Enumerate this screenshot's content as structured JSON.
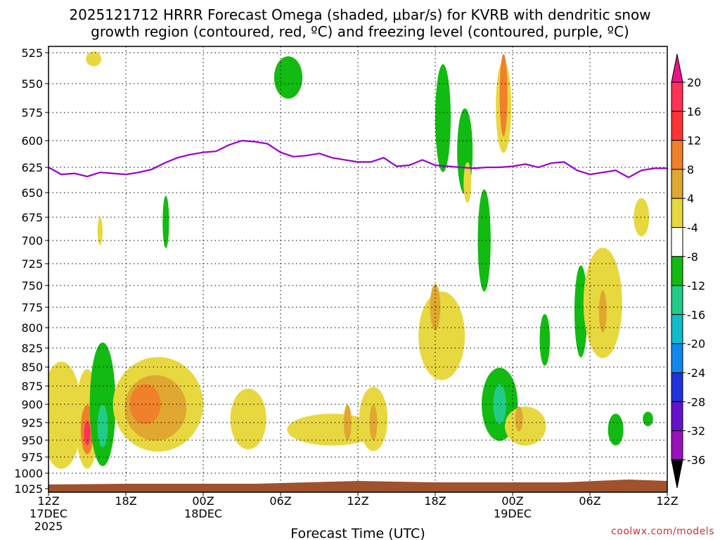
{
  "chart_data": {
    "type": "time-height contour",
    "title_line1": "2025121712 HRRR Forecast Omega (shaded, μbar/s) for KVRB with dendritic snow",
    "title_line2": "growth region (contoured, red, ºC) and freezing level (contoured, purple, ºC)",
    "xlabel": "Forecast Time (UTC)",
    "credit": "coolwx.com/models",
    "y_levels": [
      525,
      550,
      575,
      600,
      625,
      650,
      675,
      700,
      725,
      750,
      775,
      800,
      825,
      850,
      875,
      900,
      925,
      950,
      975,
      1000,
      1025
    ],
    "y_label_text": [
      "525",
      "550",
      "575",
      "600",
      "625",
      "650",
      "675",
      "700",
      "725",
      "750",
      "775",
      "800",
      "825",
      "850",
      "875",
      "900",
      "925",
      "950",
      "975",
      "1000",
      "1025"
    ],
    "x_ticks": [
      {
        "hour": 0,
        "label": "12Z",
        "sub": "17DEC",
        "sub2": "2025"
      },
      {
        "hour": 6,
        "label": "18Z",
        "sub": "",
        "sub2": ""
      },
      {
        "hour": 12,
        "label": "00Z",
        "sub": "18DEC",
        "sub2": ""
      },
      {
        "hour": 18,
        "label": "06Z",
        "sub": "",
        "sub2": ""
      },
      {
        "hour": 24,
        "label": "12Z",
        "sub": "",
        "sub2": ""
      },
      {
        "hour": 30,
        "label": "18Z",
        "sub": "",
        "sub2": ""
      },
      {
        "hour": 36,
        "label": "00Z",
        "sub": "19DEC",
        "sub2": ""
      },
      {
        "hour": 42,
        "label": "06Z",
        "sub": "",
        "sub2": ""
      },
      {
        "hour": 48,
        "label": "12Z",
        "sub": "",
        "sub2": ""
      }
    ],
    "x_range_hours": [
      0,
      48
    ],
    "colorbar": {
      "labels": [
        "20",
        "16",
        "12",
        "8",
        "4",
        "-4",
        "-8",
        "-12",
        "-16",
        "-20",
        "-24",
        "-28",
        "-32",
        "-36"
      ],
      "colors": [
        "#ff3355",
        "#ff3333",
        "#f0802a",
        "#e0a830",
        "#e8d840",
        "#ffffff",
        "#11bb11",
        "#22cc88",
        "#11bbcc",
        "#1188ee",
        "#2233dd",
        "#6611cc",
        "#9911bb",
        "#aaaaaa"
      ],
      "top_color": "#ee1188",
      "bottom_color": "#000000"
    },
    "freezing_level": {
      "hours": [
        0,
        1,
        2,
        3,
        4,
        5,
        6,
        7,
        8,
        9,
        10,
        11,
        12,
        13,
        14,
        15,
        16,
        17,
        18,
        19,
        20,
        21,
        22,
        23,
        24,
        25,
        26,
        27,
        28,
        29,
        30,
        31,
        32,
        33,
        34,
        35,
        36,
        37,
        38,
        39,
        40,
        41,
        42,
        43,
        44,
        45,
        46,
        47,
        48
      ],
      "pressure": [
        625,
        632,
        631,
        634,
        630,
        631,
        632,
        630,
        627,
        621,
        616,
        613,
        611,
        610,
        604,
        600,
        601,
        603,
        611,
        615,
        614,
        612,
        616,
        618,
        620,
        620,
        616,
        624,
        623,
        618,
        623,
        624,
        625,
        626,
        625,
        625,
        624,
        622,
        625,
        621,
        620,
        628,
        632,
        630,
        628,
        635,
        628,
        626,
        626
      ]
    },
    "omega_regions": [
      {
        "value": "8",
        "h": 0.9,
        "p": 920,
        "dh": 0.9,
        "dp": 90
      },
      {
        "value": "4",
        "h": 1.0,
        "p": 915,
        "dh": 1.6,
        "dp": 150
      },
      {
        "value": "4",
        "h": 3.0,
        "p": 920,
        "dh": 0.9,
        "dp": 140
      },
      {
        "value": "12",
        "h": 3.0,
        "p": 935,
        "dh": 0.5,
        "dp": 70
      },
      {
        "value": "20",
        "h": 3.0,
        "p": 940,
        "dh": 0.25,
        "dp": 35
      },
      {
        "value": "-8",
        "h": 4.2,
        "p": 900,
        "dh": 1.0,
        "dp": 170
      },
      {
        "value": "-12",
        "h": 4.2,
        "p": 930,
        "dh": 0.4,
        "dp": 60
      },
      {
        "value": "4",
        "h": 3.5,
        "p": 530,
        "dh": 0.6,
        "dp": 12
      },
      {
        "value": "4",
        "h": 4.0,
        "p": 690,
        "dh": 0.2,
        "dp": 30
      },
      {
        "value": "4",
        "h": 8.5,
        "p": 900,
        "dh": 3.5,
        "dp": 130
      },
      {
        "value": "8",
        "h": 8.3,
        "p": 905,
        "dh": 2.4,
        "dp": 90
      },
      {
        "value": "12",
        "h": 7.5,
        "p": 900,
        "dh": 1.2,
        "dp": 55
      },
      {
        "value": "-8",
        "h": 9.1,
        "p": 680,
        "dh": 0.25,
        "dp": 55
      },
      {
        "value": "4",
        "h": 15.5,
        "p": 920,
        "dh": 1.4,
        "dp": 85
      },
      {
        "value": "-8",
        "h": 18.6,
        "p": 545,
        "dh": 1.1,
        "dp": 35
      },
      {
        "value": "4",
        "h": 22.0,
        "p": 935,
        "dh": 3.5,
        "dp": 45
      },
      {
        "value": "8",
        "h": 23.2,
        "p": 925,
        "dh": 0.3,
        "dp": 50
      },
      {
        "value": "4",
        "h": 25.2,
        "p": 920,
        "dh": 1.1,
        "dp": 90
      },
      {
        "value": "8",
        "h": 25.2,
        "p": 925,
        "dh": 0.3,
        "dp": 50
      },
      {
        "value": "4",
        "h": 30.5,
        "p": 810,
        "dh": 1.8,
        "dp": 110
      },
      {
        "value": "8",
        "h": 30.0,
        "p": 775,
        "dh": 0.4,
        "dp": 55
      },
      {
        "value": "-8",
        "h": 30.6,
        "p": 580,
        "dh": 0.6,
        "dp": 95
      },
      {
        "value": "-8",
        "h": 32.3,
        "p": 610,
        "dh": 0.6,
        "dp": 80
      },
      {
        "value": "4",
        "h": 32.5,
        "p": 640,
        "dh": 0.3,
        "dp": 40
      },
      {
        "value": "-8",
        "h": 33.8,
        "p": 700,
        "dh": 0.5,
        "dp": 110
      },
      {
        "value": "4",
        "h": 35.3,
        "p": 570,
        "dh": 0.6,
        "dp": 80
      },
      {
        "value": "12",
        "h": 35.3,
        "p": 560,
        "dh": 0.3,
        "dp": 70
      },
      {
        "value": "-8",
        "h": 35.0,
        "p": 900,
        "dh": 1.4,
        "dp": 100
      },
      {
        "value": "-12",
        "h": 35.0,
        "p": 900,
        "dh": 0.5,
        "dp": 55
      },
      {
        "value": "4",
        "h": 37.0,
        "p": 930,
        "dh": 1.6,
        "dp": 55
      },
      {
        "value": "8",
        "h": 36.5,
        "p": 920,
        "dh": 0.3,
        "dp": 35
      },
      {
        "value": "-8",
        "h": 38.5,
        "p": 815,
        "dh": 0.4,
        "dp": 65
      },
      {
        "value": "-8",
        "h": 41.3,
        "p": 780,
        "dh": 0.5,
        "dp": 110
      },
      {
        "value": "4",
        "h": 43.0,
        "p": 770,
        "dh": 1.5,
        "dp": 130
      },
      {
        "value": "8",
        "h": 43.0,
        "p": 780,
        "dh": 0.3,
        "dp": 50
      },
      {
        "value": "-8",
        "h": 44.0,
        "p": 935,
        "dh": 0.6,
        "dp": 45
      },
      {
        "value": "4",
        "h": 46.0,
        "p": 675,
        "dh": 0.6,
        "dp": 40
      },
      {
        "value": "-8",
        "h": 46.5,
        "p": 920,
        "dh": 0.4,
        "dp": 20
      }
    ]
  }
}
